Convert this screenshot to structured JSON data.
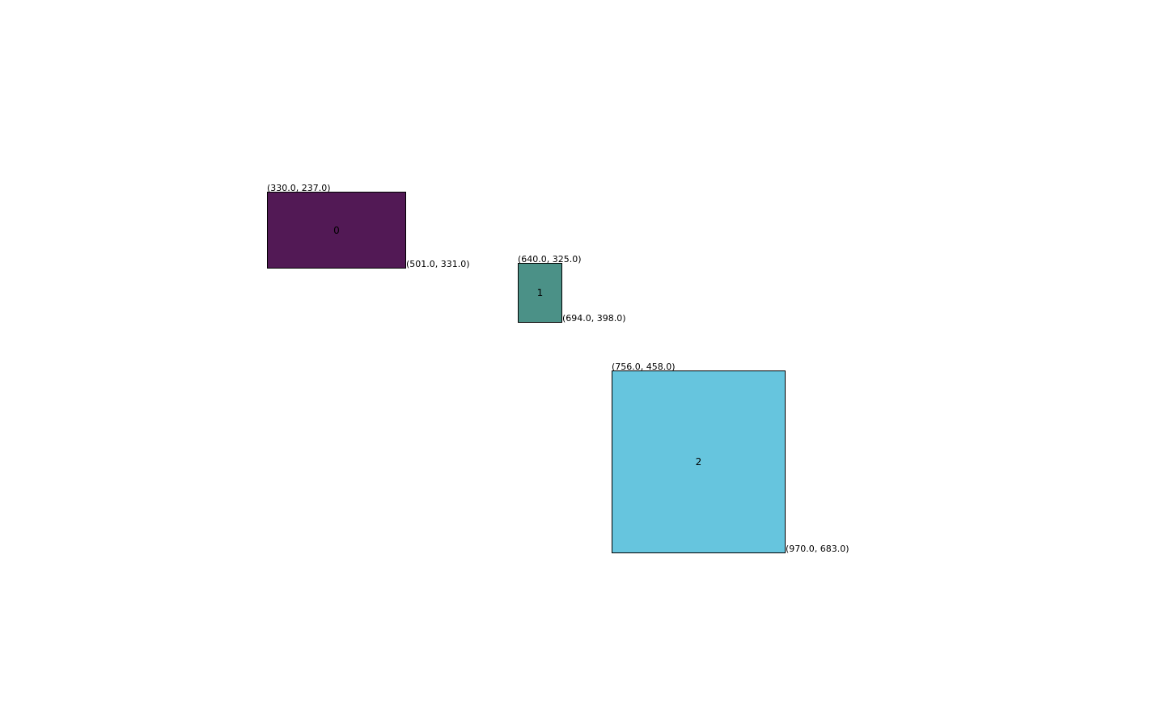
{
  "boxes": [
    {
      "label": "0",
      "top_left_text": "(330.0, 237.0)",
      "bottom_right_text": "(501.0, 331.0)",
      "color": "#521955"
    },
    {
      "label": "1",
      "top_left_text": "(640.0, 325.0)",
      "bottom_right_text": "(694.0, 398.0)",
      "color": "#4b9187"
    },
    {
      "label": "2",
      "top_left_text": "(756.0, 458.0)",
      "bottom_right_text": "(970.0, 683.0)",
      "color": "#66c5de"
    }
  ]
}
